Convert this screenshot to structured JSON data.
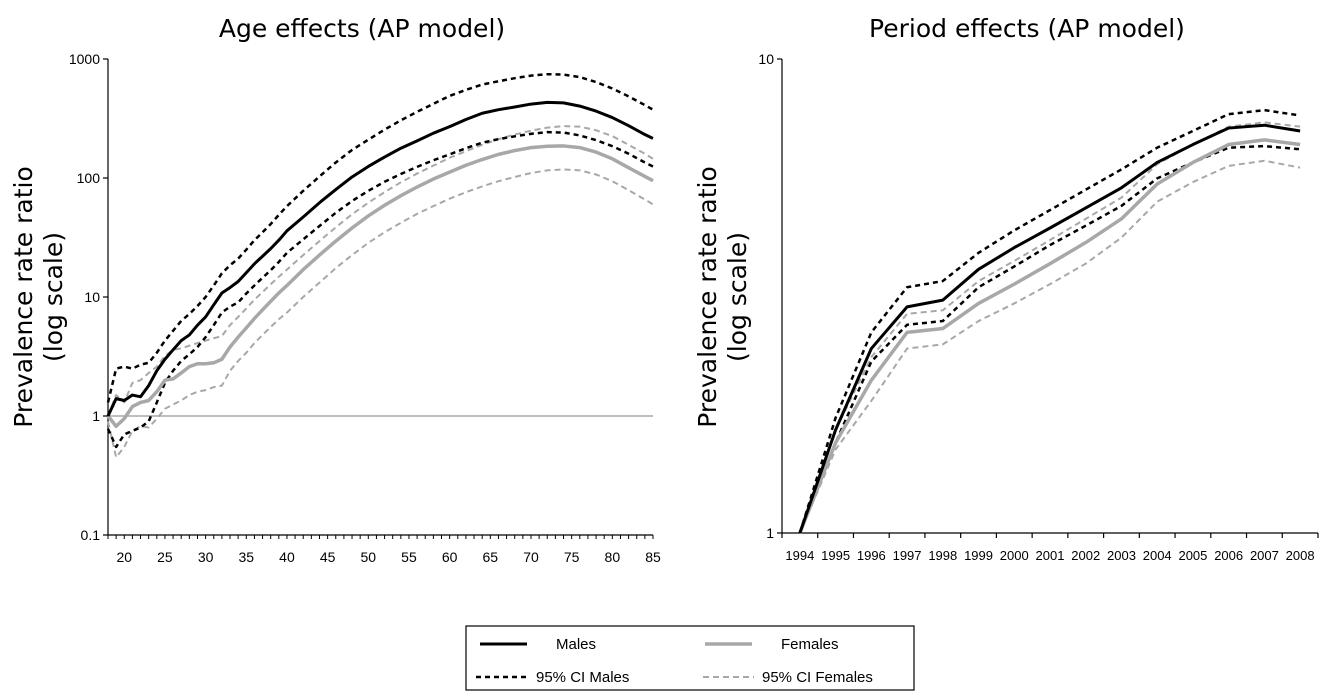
{
  "chart_data": [
    {
      "type": "line",
      "title": "Age effects (AP model)",
      "ylabel_line1": "Prevalence rate ratio",
      "ylabel_line2": "(log scale)",
      "yscale": "log",
      "ylim": [
        0.1,
        1000
      ],
      "yticks": [
        0.1,
        1,
        10,
        100,
        1000
      ],
      "yticklabels": [
        "0.1",
        "1",
        "10",
        "100",
        "1000"
      ],
      "xlim": [
        18,
        85
      ],
      "xticks": [
        20,
        25,
        30,
        35,
        40,
        45,
        50,
        55,
        60,
        65,
        70,
        75,
        80,
        85
      ],
      "xticklabels": [
        "20",
        "25",
        "30",
        "35",
        "40",
        "45",
        "50",
        "55",
        "60",
        "65",
        "70",
        "75",
        "80",
        "85"
      ],
      "reference_line": 1,
      "x": [
        18,
        19,
        20,
        21,
        22,
        23,
        24,
        25,
        26,
        27,
        28,
        29,
        30,
        31,
        32,
        33,
        34,
        35,
        36,
        37,
        38,
        39,
        40,
        42,
        44,
        46,
        48,
        50,
        52,
        54,
        56,
        58,
        60,
        62,
        64,
        66,
        68,
        70,
        72,
        74,
        76,
        78,
        80,
        82,
        84,
        85
      ],
      "series": [
        {
          "name": "Males",
          "style": "males",
          "values": [
            1.0,
            1.4,
            1.35,
            1.5,
            1.45,
            1.8,
            2.4,
            3.0,
            3.6,
            4.3,
            4.8,
            5.8,
            6.8,
            8.6,
            10.8,
            12.0,
            13.5,
            16.0,
            19.0,
            22.0,
            25.5,
            30.0,
            36.0,
            47.0,
            62.0,
            80.0,
            102.0,
            125.0,
            150.0,
            178.0,
            205.0,
            238.0,
            270.0,
            310.0,
            350.0,
            375.0,
            395.0,
            418.0,
            432.0,
            428.0,
            402.0,
            365.0,
            322.0,
            275.0,
            232.0,
            215.0
          ]
        },
        {
          "name": "95% CI Males",
          "style": "ci-males",
          "values": [
            1.3,
            2.5,
            2.6,
            2.5,
            2.7,
            2.8,
            3.4,
            4.3,
            5.2,
            6.3,
            7.2,
            8.4,
            10.0,
            12.5,
            15.8,
            18.5,
            21.0,
            25.0,
            30.0,
            35.0,
            41.0,
            49.0,
            58.0,
            78.0,
            103.0,
            135.0,
            172.0,
            210.0,
            255.0,
            305.0,
            360.0,
            420.0,
            490.0,
            550.0,
            610.0,
            650.0,
            690.0,
            725.0,
            745.0,
            740.0,
            705.0,
            640.0,
            565.0,
            485.0,
            410.0,
            375.0
          ]
        },
        {
          "name": "95% CI Males",
          "style": "ci-males",
          "values": [
            0.78,
            0.55,
            0.7,
            0.75,
            0.8,
            0.9,
            1.3,
            1.9,
            2.4,
            2.9,
            3.3,
            3.8,
            4.6,
            5.8,
            7.4,
            8.3,
            9.0,
            10.7,
            12.5,
            14.5,
            16.8,
            19.7,
            23.5,
            30.5,
            39.5,
            51.0,
            64.0,
            78.0,
            93.0,
            108.0,
            124.0,
            141.0,
            158.0,
            178.0,
            198.0,
            212.0,
            224.0,
            235.0,
            243.0,
            241.0,
            228.0,
            208.0,
            185.0,
            160.0,
            135.0,
            125.0
          ]
        },
        {
          "name": "Females",
          "style": "females",
          "values": [
            1.0,
            0.82,
            0.95,
            1.2,
            1.3,
            1.35,
            1.6,
            2.0,
            2.05,
            2.3,
            2.6,
            2.75,
            2.75,
            2.8,
            3.0,
            3.8,
            4.6,
            5.5,
            6.6,
            7.8,
            9.2,
            10.8,
            12.5,
            17.0,
            22.5,
            29.5,
            38.0,
            48.0,
            59.0,
            71.0,
            84.0,
            98.0,
            112.0,
            128.0,
            143.0,
            158.0,
            170.0,
            180.0,
            185.0,
            186.0,
            180.0,
            165.0,
            145.0,
            122.0,
            103.0,
            95.0
          ]
        },
        {
          "name": "95% CI Females",
          "style": "ci-females",
          "values": [
            1.0,
            1.5,
            1.3,
            1.9,
            2.0,
            2.3,
            2.6,
            3.2,
            3.6,
            3.7,
            3.9,
            4.1,
            4.3,
            4.5,
            4.7,
            5.8,
            6.8,
            8.0,
            9.5,
            11.0,
            12.8,
            14.8,
            17.0,
            22.5,
            29.5,
            38.5,
            49.5,
            62.0,
            76.0,
            92.0,
            109.0,
            127.0,
            148.0,
            168.0,
            190.0,
            212.0,
            232.0,
            250.0,
            265.0,
            273.0,
            270.0,
            252.0,
            225.0,
            190.0,
            160.0,
            145.0
          ]
        },
        {
          "name": "95% CI Females",
          "style": "ci-females",
          "values": [
            0.9,
            0.45,
            0.55,
            0.75,
            0.82,
            0.8,
            0.95,
            1.15,
            1.25,
            1.35,
            1.5,
            1.6,
            1.65,
            1.75,
            1.8,
            2.4,
            2.9,
            3.4,
            4.1,
            4.8,
            5.6,
            6.5,
            7.4,
            10.0,
            13.2,
            17.5,
            22.5,
            28.5,
            35.0,
            42.0,
            50.0,
            58.0,
            67.0,
            76.0,
            85.0,
            94.0,
            102.0,
            110.0,
            116.0,
            118.0,
            116.0,
            107.0,
            94.0,
            79.0,
            66.0,
            60.0
          ]
        }
      ]
    },
    {
      "type": "line",
      "title": "Period effects (AP model)",
      "ylabel_line1": "Prevalence rate ratio",
      "ylabel_line2": "(log scale)",
      "yscale": "log",
      "ylim": [
        1,
        10
      ],
      "yticks": [
        1,
        10
      ],
      "yticklabels": [
        "1",
        "10"
      ],
      "categories": [
        "1994",
        "1995",
        "1996",
        "1997",
        "1998",
        "1999",
        "2000",
        "2001",
        "2002",
        "2003",
        "2004",
        "2005",
        "2006",
        "2007",
        "2008"
      ],
      "series": [
        {
          "name": "Males",
          "style": "males",
          "values": [
            1.0,
            1.65,
            2.45,
            3.0,
            3.1,
            3.6,
            4.0,
            4.4,
            4.85,
            5.35,
            6.05,
            6.6,
            7.15,
            7.25,
            7.05
          ]
        },
        {
          "name": "95% CI Males",
          "style": "ci-males",
          "values": [
            1.0,
            1.75,
            2.65,
            3.3,
            3.4,
            3.9,
            4.35,
            4.8,
            5.3,
            5.85,
            6.5,
            7.05,
            7.65,
            7.8,
            7.6
          ]
        },
        {
          "name": "95% CI Males",
          "style": "ci-males",
          "values": [
            1.0,
            1.55,
            2.3,
            2.75,
            2.8,
            3.3,
            3.65,
            4.05,
            4.45,
            4.9,
            5.6,
            6.05,
            6.5,
            6.55,
            6.45
          ]
        },
        {
          "name": "Females",
          "style": "females",
          "values": [
            1.0,
            1.55,
            2.1,
            2.65,
            2.7,
            3.05,
            3.35,
            3.7,
            4.1,
            4.6,
            5.45,
            6.05,
            6.6,
            6.75,
            6.6
          ]
        },
        {
          "name": "95% CI Females",
          "style": "ci-females",
          "values": [
            1.0,
            1.65,
            2.35,
            2.9,
            2.95,
            3.4,
            3.75,
            4.15,
            4.6,
            5.1,
            6.0,
            6.6,
            7.2,
            7.35,
            7.2
          ]
        },
        {
          "name": "95% CI Females",
          "style": "ci-females",
          "values": [
            1.0,
            1.5,
            1.9,
            2.45,
            2.5,
            2.8,
            3.05,
            3.35,
            3.7,
            4.2,
            5.0,
            5.5,
            5.95,
            6.1,
            5.9
          ]
        }
      ]
    }
  ],
  "legend": {
    "placement": "bottom-center",
    "items": [
      {
        "label": "Males",
        "style": "males"
      },
      {
        "label": "Females",
        "style": "females"
      },
      {
        "label": "95% CI Males",
        "style": "ci-males"
      },
      {
        "label": "95% CI Females",
        "style": "ci-females"
      }
    ]
  },
  "styles": {
    "males": {
      "color": "#000000",
      "width": 3,
      "dash": ""
    },
    "ci-males": {
      "color": "#000000",
      "width": 2.5,
      "dash": "5,4"
    },
    "females": {
      "color": "#a8a8a8",
      "width": 3.5,
      "dash": ""
    },
    "ci-females": {
      "color": "#a8a8a8",
      "width": 2,
      "dash": "6,4"
    },
    "reference": {
      "color": "#a8a8a8",
      "width": 1.5,
      "dash": ""
    }
  }
}
